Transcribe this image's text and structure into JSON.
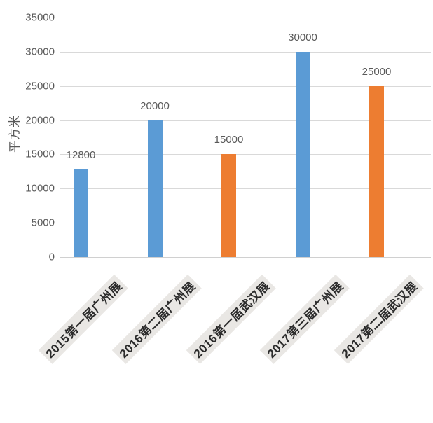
{
  "colors": {
    "bar_blue": "#5B9BD5",
    "bar_orange": "#ED7D31",
    "gridline": "#D9D9D9",
    "axis_text": "#595959",
    "value_label_text": "#595959",
    "category_text": "#2B2B2B",
    "category_highlight_bg": "#E9E7E4",
    "background": "#FFFFFF"
  },
  "chart_data": {
    "type": "bar",
    "title": "",
    "xlabel": "",
    "ylabel": "平方米",
    "categories": [
      "2015第一届广州展",
      "2016第二届广州展",
      "2016第一届武汉展",
      "2017第三届广州展",
      "2017第二届武汉展"
    ],
    "values": [
      12800,
      20000,
      15000,
      30000,
      25000
    ],
    "data_labels": [
      "12800",
      "20000",
      "15000",
      "30000",
      "25000"
    ],
    "bar_colors": [
      "#5B9BD5",
      "#5B9BD5",
      "#ED7D31",
      "#5B9BD5",
      "#ED7D31"
    ],
    "ylim": [
      0,
      35000
    ],
    "ytick_step": 5000,
    "ytick_labels": [
      "0",
      "5000",
      "10000",
      "15000",
      "20000",
      "25000",
      "30000",
      "35000"
    ],
    "grid": "horizontal",
    "legend": "none",
    "category_label_rotation_deg": -45
  }
}
